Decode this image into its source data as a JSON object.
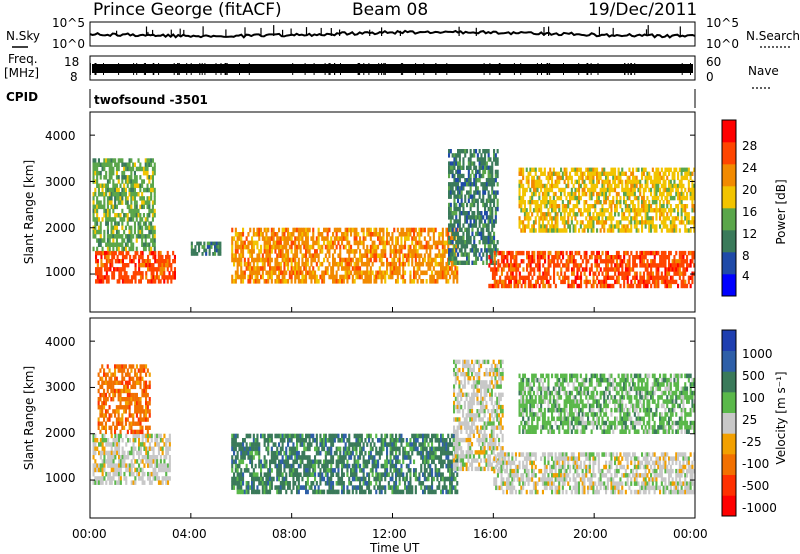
{
  "header": {
    "station": "Prince George (fitACF)",
    "beam": "Beam 08",
    "date": "19/Dec/2011"
  },
  "noise_panel": {
    "left_label": "N.Sky",
    "right_label": "N.Search",
    "ticks": [
      "10^5",
      "10^0"
    ],
    "right_ticks": [
      "10^5",
      "10^0"
    ]
  },
  "freq_panel": {
    "left_label_1": "Freq.",
    "left_label_2": "[MHz]",
    "ticks": [
      "18",
      "8"
    ],
    "right_ticks": [
      "60",
      "0"
    ],
    "right_label": "Nave"
  },
  "cpid_panel": {
    "label": "CPID",
    "value": "twofsound -3501"
  },
  "axes": {
    "ylabel": "Slant Range [km]",
    "xlabel": "Time UT",
    "y_ticks": [
      "4000",
      "3000",
      "2000",
      "1000"
    ],
    "x_ticks": [
      "00:00",
      "04:00",
      "08:00",
      "12:00",
      "16:00",
      "20:00",
      "00:00"
    ]
  },
  "power_scale": {
    "label": "Power [dB]",
    "ticks": [
      "28",
      "24",
      "20",
      "16",
      "12",
      "8",
      "4"
    ],
    "colors": [
      "#0000ff",
      "#1f4aa8",
      "#3a7a5a",
      "#5aa64a",
      "#f2c400",
      "#f28a00",
      "#ff4500",
      "#ff0000"
    ]
  },
  "velocity_scale": {
    "label": "Velocity [m s⁻¹]",
    "ticks": [
      "1000",
      "500",
      "100",
      "25",
      "-25",
      "-100",
      "-500",
      "-1000"
    ],
    "colors": [
      "#1f3fb0",
      "#2e5fa8",
      "#3a7a5a",
      "#5ab84a",
      "#c8c8c8",
      "#f2a000",
      "#f27000",
      "#ff3000",
      "#ff0000"
    ]
  },
  "chart_data": [
    {
      "type": "heatmap",
      "title": "",
      "xlabel": "Time UT",
      "ylabel": "Slant Range [km]",
      "xlim": [
        0,
        24
      ],
      "ylim": [
        180,
        4500
      ],
      "colorbar_label": "Power [dB]",
      "clim": [
        0,
        30
      ],
      "regions": [
        {
          "t0": 0.2,
          "t1": 3.4,
          "r0": 800,
          "r1": 1500,
          "value": 26
        },
        {
          "t0": 0.1,
          "t1": 2.6,
          "r0": 1500,
          "r1": 3500,
          "value": 14
        },
        {
          "t0": 4.0,
          "t1": 5.2,
          "r0": 1400,
          "r1": 1700,
          "value": 10
        },
        {
          "t0": 5.6,
          "t1": 14.6,
          "r0": 800,
          "r1": 2000,
          "value": 22
        },
        {
          "t0": 14.2,
          "t1": 16.2,
          "r0": 1200,
          "r1": 3700,
          "value": 8
        },
        {
          "t0": 15.8,
          "t1": 24.0,
          "r0": 700,
          "r1": 1500,
          "value": 26
        },
        {
          "t0": 17.0,
          "t1": 24.0,
          "r0": 1900,
          "r1": 3300,
          "value": 16
        }
      ]
    },
    {
      "type": "heatmap",
      "title": "",
      "xlabel": "Time UT",
      "ylabel": "Slant Range [km]",
      "xlim": [
        0,
        24
      ],
      "ylim": [
        180,
        4500
      ],
      "colorbar_label": "Velocity [m s⁻¹]",
      "clim": [
        -1000,
        1000
      ],
      "regions": [
        {
          "t0": 0.1,
          "t1": 3.2,
          "r0": 900,
          "r1": 2000,
          "value": 0
        },
        {
          "t0": 0.3,
          "t1": 2.4,
          "r0": 2000,
          "r1": 3500,
          "value": -300
        },
        {
          "t0": 5.6,
          "t1": 14.6,
          "r0": 700,
          "r1": 2000,
          "value": 150
        },
        {
          "t0": 14.4,
          "t1": 16.4,
          "r0": 1200,
          "r1": 3600,
          "value": 0
        },
        {
          "t0": 16.0,
          "t1": 24.0,
          "r0": 700,
          "r1": 1600,
          "value": 0
        },
        {
          "t0": 17.0,
          "t1": 24.0,
          "r0": 2000,
          "r1": 3300,
          "value": 60
        }
      ]
    }
  ]
}
